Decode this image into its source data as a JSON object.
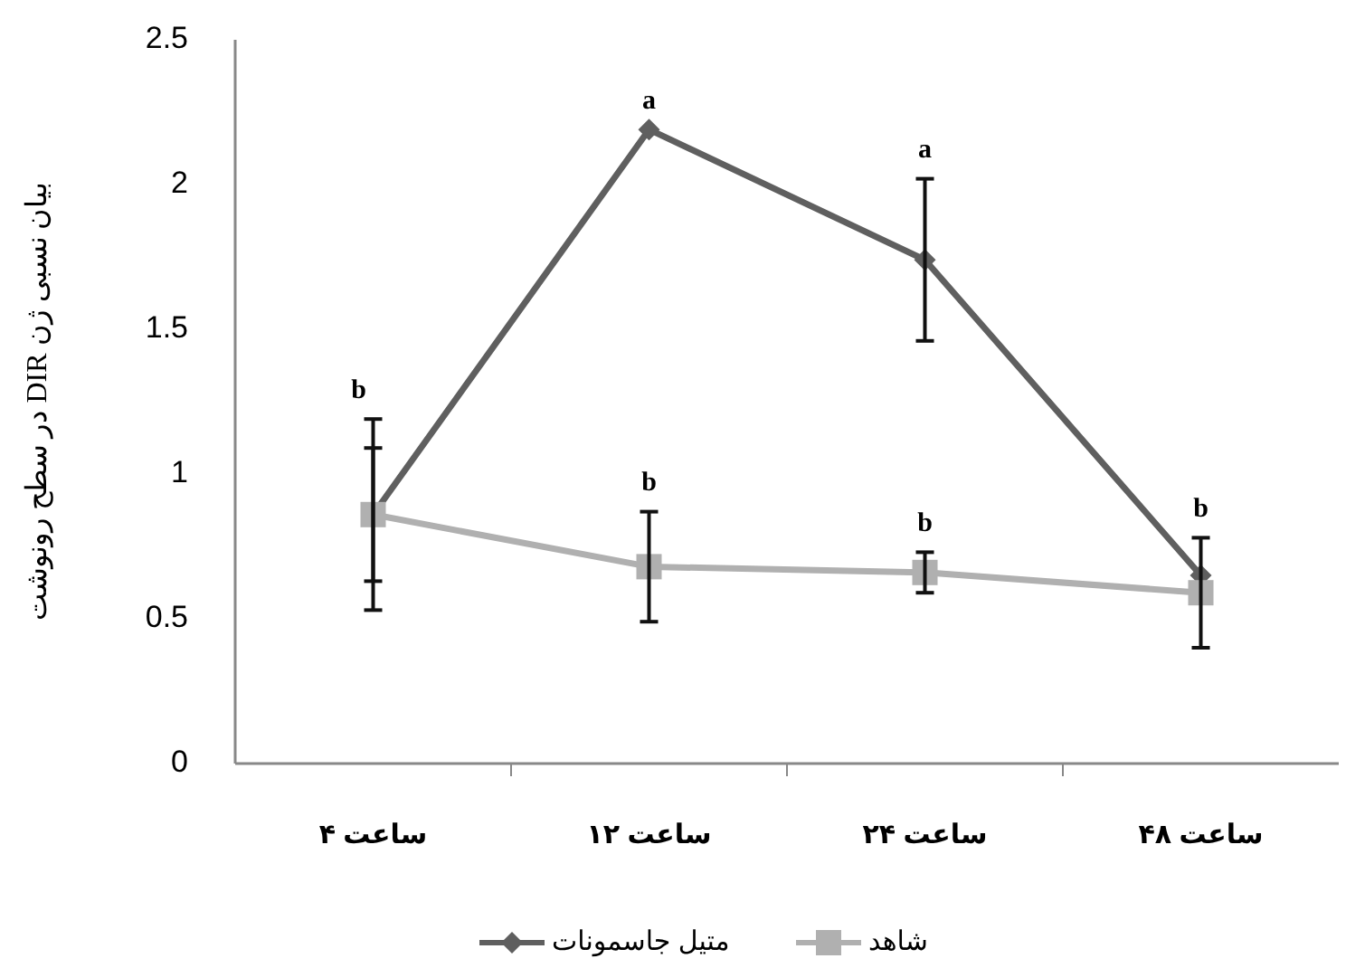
{
  "chart_data": {
    "type": "line",
    "ylabel": "بیان نسبی ژن DIR در سطح رونوشت",
    "categories": [
      "ساعت ۴",
      "ساعت ۱۲",
      "ساعت ۲۴",
      "ساعت ۴۸"
    ],
    "series": [
      {
        "name": "متیل جاسمونات",
        "color": "#5f5f5f",
        "marker": "diamond",
        "values": [
          0.86,
          2.19,
          1.74,
          0.65
        ],
        "errors": [
          0.33,
          null,
          0.28,
          null
        ]
      },
      {
        "name": "شاهد",
        "color": "#b0b0b0",
        "marker": "square",
        "values": [
          0.86,
          0.68,
          0.66,
          0.59
        ],
        "errors": [
          0.23,
          0.19,
          0.07,
          0.19
        ]
      }
    ],
    "annotations": [
      {
        "text": "b",
        "x": "ساعت ۴",
        "y": 1.19
      },
      {
        "text": "a",
        "x": "ساعت ۱۲",
        "y": 2.19
      },
      {
        "text": "a",
        "x": "ساعت ۲۴",
        "y": 2.02
      },
      {
        "text": "b",
        "x": "ساعت ۱۲",
        "y": 0.87
      },
      {
        "text": "b",
        "x": "ساعت ۲۴",
        "y": 0.73
      },
      {
        "text": "b",
        "x": "ساعت ۴۸",
        "y": 0.78
      }
    ],
    "ylim": [
      0,
      2.5
    ],
    "yticks": [
      0,
      0.5,
      1,
      1.5,
      2,
      2.5
    ],
    "grid": false,
    "legend": "bottom"
  }
}
